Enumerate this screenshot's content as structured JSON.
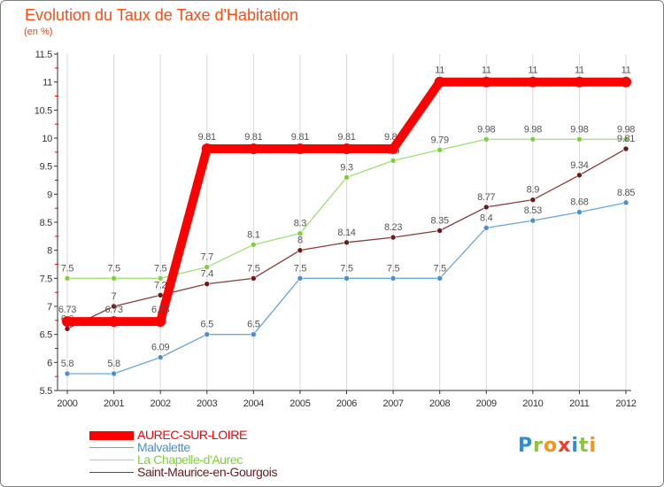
{
  "header": {
    "title": "Evolution du Taux de Taxe d'Habitation",
    "subtitle": "(en %)"
  },
  "colors": {
    "title": "#ff4b12",
    "grid": "#d9d9d9",
    "axis": "#333333",
    "zero_dash": "#ff0000"
  },
  "logo": {
    "text": "Proxiti",
    "letters": [
      {
        "ch": "P",
        "color": "#2b8fd6"
      },
      {
        "ch": "r",
        "color": "#8bc53f"
      },
      {
        "ch": "o",
        "color": "#f7941d"
      },
      {
        "ch": "x",
        "color": "#e8402f"
      },
      {
        "ch": "i",
        "color": "#2b8fd6"
      },
      {
        "ch": "t",
        "color": "#8bc53f"
      },
      {
        "ch": "i",
        "color": "#f7941d"
      }
    ]
  },
  "chart_data": {
    "type": "line",
    "title": "Evolution du Taux de Taxe d'Habitation",
    "subtitle": "(en %)",
    "x": [
      2000,
      2001,
      2002,
      2003,
      2004,
      2005,
      2006,
      2007,
      2008,
      2009,
      2010,
      2011,
      2012
    ],
    "ylim": [
      5.5,
      11.5
    ],
    "yticks": [
      5.5,
      6,
      6.5,
      7,
      7.5,
      8,
      8.5,
      9,
      9.5,
      10,
      10.5,
      11,
      11.5
    ],
    "ytick_labels": [
      "5.5",
      "6",
      "6.5",
      "7",
      "7.5",
      "8",
      "8.5",
      "9",
      "9.5",
      "10",
      "10.5",
      "11",
      "11.5"
    ],
    "grid": "vertical",
    "legend_position": "bottom-left",
    "series": [
      {
        "name": "AUREC-SUR-LOIRE",
        "color": "#ff0000",
        "thick": true,
        "values": [
          6.73,
          6.73,
          6.73,
          9.81,
          9.81,
          9.81,
          9.81,
          9.81,
          11,
          11,
          11,
          11,
          11
        ],
        "labels": [
          "6.73",
          "6.73",
          "6.73",
          "9.81",
          "9.81",
          "9.81",
          "9.81",
          "9.81",
          "11",
          "11",
          "11",
          "11",
          "11"
        ]
      },
      {
        "name": "Malvalette",
        "color": "#6aa6d8",
        "marker": "#4a90d0",
        "values": [
          5.8,
          5.8,
          6.09,
          6.5,
          6.5,
          7.5,
          7.5,
          7.5,
          7.5,
          8.4,
          8.53,
          8.68,
          8.85
        ],
        "labels": [
          "5.8",
          "5.8",
          "6.09",
          "6.5",
          "6.5",
          "7.5",
          "7.5",
          "7.5",
          "7.5",
          "8.4",
          "8.53",
          "8.68",
          "8.85"
        ]
      },
      {
        "name": "La Chapelle-d'Aurec",
        "color": "#a3dd76",
        "marker": "#7ed03c",
        "values": [
          7.5,
          7.5,
          7.5,
          7.7,
          8.1,
          8.3,
          9.3,
          9.6,
          9.79,
          9.98,
          9.98,
          9.98,
          9.98
        ],
        "labels": [
          "7.5",
          "7.5",
          "7.5",
          "7.7",
          "8.1",
          "8.3",
          "9.3",
          "9.6",
          "9.79",
          "9.98",
          "9.98",
          "9.98",
          "9.98"
        ]
      },
      {
        "name": "Saint-Maurice-en-Gourgois",
        "color": "#8a3a3a",
        "marker": "#6b1a1a",
        "values": [
          6.6,
          7,
          7.2,
          7.4,
          7.5,
          8,
          8.14,
          8.23,
          8.35,
          8.77,
          8.9,
          9.34,
          9.81
        ],
        "labels": [
          "6.6",
          "7",
          "7.2",
          "7.4",
          "7.5",
          "8",
          "8.14",
          "8.23",
          "8.35",
          "8.77",
          "8.9",
          "9.34",
          "9.81"
        ]
      }
    ]
  }
}
